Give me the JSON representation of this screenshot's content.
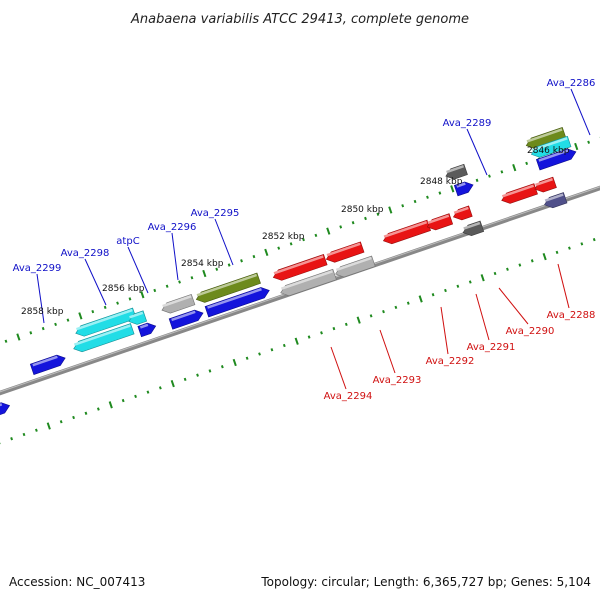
{
  "title": "Anabaena variabilis ATCC 29413, complete genome",
  "footer": {
    "accession": "Accession: NC_007413",
    "summary": "Topology: circular; Length: 6,365,727 bp; Genes: 5,104"
  },
  "kbp_ticks": [
    {
      "label": "2846 kbp"
    },
    {
      "label": "2848 kbp"
    },
    {
      "label": "2850 kbp"
    },
    {
      "label": "2852 kbp"
    },
    {
      "label": "2854 kbp"
    },
    {
      "label": "2856 kbp"
    },
    {
      "label": "2858 kbp"
    }
  ],
  "colors": {
    "backbone": "#888888",
    "blue": "#1414dc",
    "cyan": "#22dde6",
    "olive": "#6d8a1c",
    "silver": "#b0b0b0",
    "red": "#e81414",
    "darkgray": "#5a5a5a",
    "slate": "#50508a",
    "tick": "#1f8a1f"
  },
  "genes_upper": [
    {
      "label": "Ava_2286",
      "color": "blue"
    },
    {
      "label": "Ava_2289",
      "color": "blue"
    },
    {
      "label": "Ava_2295",
      "color": "blue"
    },
    {
      "label": "Ava_2296",
      "color": "blue"
    },
    {
      "label": "atpC",
      "color": "cyan"
    },
    {
      "label": "Ava_2298",
      "color": "blue"
    },
    {
      "label": "Ava_2299",
      "color": "blue"
    }
  ],
  "genes_lower": [
    {
      "label": "Ava_2288",
      "color": "red"
    },
    {
      "label": "Ava_2290",
      "color": "red"
    },
    {
      "label": "Ava_2291",
      "color": "red"
    },
    {
      "label": "Ava_2292",
      "color": "red"
    },
    {
      "label": "Ava_2293",
      "color": "red"
    },
    {
      "label": "Ava_2294",
      "color": "red"
    }
  ]
}
